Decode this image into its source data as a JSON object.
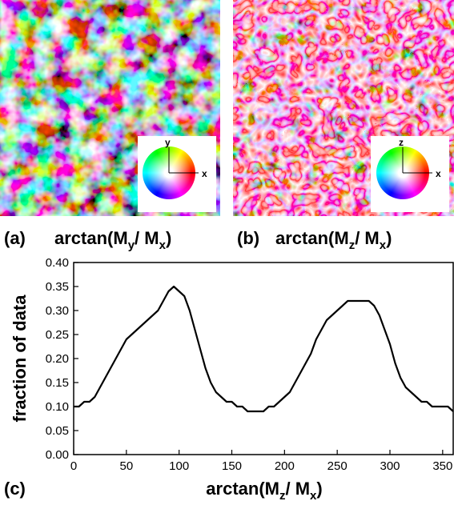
{
  "panels": [
    {
      "label": "(a)",
      "caption": [
        "arctan(M",
        "y",
        "/ M",
        "x",
        ")"
      ],
      "inset_labels": [
        "y",
        "x"
      ]
    },
    {
      "label": "(b)",
      "caption": [
        "arctan(M",
        "z",
        "/ M",
        "x",
        ")"
      ],
      "inset_labels": [
        "z",
        "x"
      ]
    }
  ],
  "chart_data": {
    "type": "line",
    "panel_label": "(c)",
    "x_label": [
      "arctan(M",
      "z",
      "/ M",
      "x",
      ")"
    ],
    "y_label": "fraction of data",
    "color": "#000000",
    "x": [
      0,
      5,
      10,
      15,
      20,
      25,
      30,
      35,
      40,
      45,
      50,
      55,
      60,
      65,
      70,
      75,
      80,
      85,
      90,
      95,
      100,
      105,
      110,
      115,
      120,
      125,
      130,
      135,
      140,
      145,
      150,
      155,
      160,
      165,
      170,
      175,
      180,
      185,
      190,
      195,
      200,
      205,
      210,
      215,
      220,
      225,
      230,
      235,
      240,
      245,
      250,
      255,
      260,
      265,
      270,
      275,
      280,
      285,
      290,
      295,
      300,
      305,
      310,
      315,
      320,
      325,
      330,
      335,
      340,
      345,
      350,
      355,
      360
    ],
    "values": [
      0.1,
      0.1,
      0.11,
      0.11,
      0.12,
      0.14,
      0.16,
      0.18,
      0.2,
      0.22,
      0.24,
      0.25,
      0.26,
      0.27,
      0.28,
      0.29,
      0.3,
      0.32,
      0.34,
      0.35,
      0.34,
      0.33,
      0.3,
      0.26,
      0.22,
      0.18,
      0.15,
      0.13,
      0.12,
      0.11,
      0.11,
      0.1,
      0.1,
      0.09,
      0.09,
      0.09,
      0.09,
      0.1,
      0.1,
      0.11,
      0.12,
      0.13,
      0.15,
      0.17,
      0.19,
      0.21,
      0.24,
      0.26,
      0.28,
      0.29,
      0.3,
      0.31,
      0.32,
      0.32,
      0.32,
      0.32,
      0.32,
      0.31,
      0.29,
      0.26,
      0.23,
      0.19,
      0.16,
      0.14,
      0.13,
      0.12,
      0.11,
      0.11,
      0.1,
      0.1,
      0.1,
      0.1,
      0.09
    ],
    "xlim": [
      0,
      360
    ],
    "ylim": [
      0,
      0.4
    ],
    "xticks": [
      0,
      50,
      100,
      150,
      200,
      250,
      300,
      350
    ],
    "yticks": [
      {
        "value": 0,
        "label": "0.00"
      },
      {
        "value": 0.05,
        "label": "0.05"
      },
      {
        "value": 0.1,
        "label": "0.10"
      },
      {
        "value": 0.15,
        "label": "0.15"
      },
      {
        "value": 0.2,
        "label": "0.20"
      },
      {
        "value": 0.25,
        "label": "0.25"
      },
      {
        "value": 0.3,
        "label": "0.30"
      },
      {
        "value": 0.35,
        "label": "0.35"
      },
      {
        "value": 0.4,
        "label": "0.40"
      }
    ]
  }
}
